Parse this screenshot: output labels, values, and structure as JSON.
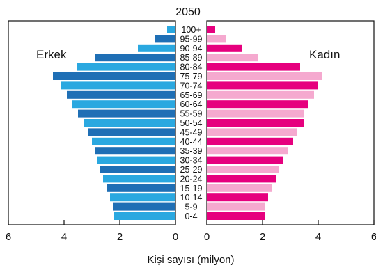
{
  "chart_data": {
    "type": "bar",
    "subtype": "population-pyramid",
    "title": "2050",
    "xlabel": "Kişi sayısı (milyon)",
    "ylabel": "",
    "age_groups": [
      "100+",
      "95-99",
      "90-94",
      "85-89",
      "80-84",
      "75-79",
      "70-74",
      "65-69",
      "60-64",
      "55-59",
      "50-54",
      "45-49",
      "40-44",
      "35-39",
      "30-34",
      "25-29",
      "20-24",
      "15-19",
      "10-14",
      "5-9",
      "0-4"
    ],
    "series": [
      {
        "name": "Erkek",
        "side": "left",
        "values": [
          0.3,
          0.75,
          1.35,
          2.9,
          3.55,
          4.4,
          4.1,
          3.9,
          3.7,
          3.5,
          3.3,
          3.15,
          3.0,
          2.9,
          2.8,
          2.7,
          2.6,
          2.45,
          2.35,
          2.25,
          2.2
        ]
      },
      {
        "name": "Kadın",
        "side": "right",
        "values": [
          0.3,
          0.7,
          1.25,
          1.85,
          3.35,
          4.15,
          4.0,
          3.85,
          3.65,
          3.5,
          3.5,
          3.25,
          3.1,
          2.9,
          2.75,
          2.6,
          2.5,
          2.35,
          2.2,
          2.1,
          2.1
        ]
      }
    ],
    "colors": {
      "male_dark": "#1f6fb5",
      "male_light": "#2aa8e0",
      "female_dark": "#e6007e",
      "female_light": "#f5a9cf"
    },
    "xlim": [
      0,
      6
    ],
    "x_ticks_left": [
      "6",
      "4",
      "2",
      "0"
    ],
    "x_ticks_right": [
      "0",
      "2",
      "4",
      "6"
    ],
    "grid": false
  }
}
